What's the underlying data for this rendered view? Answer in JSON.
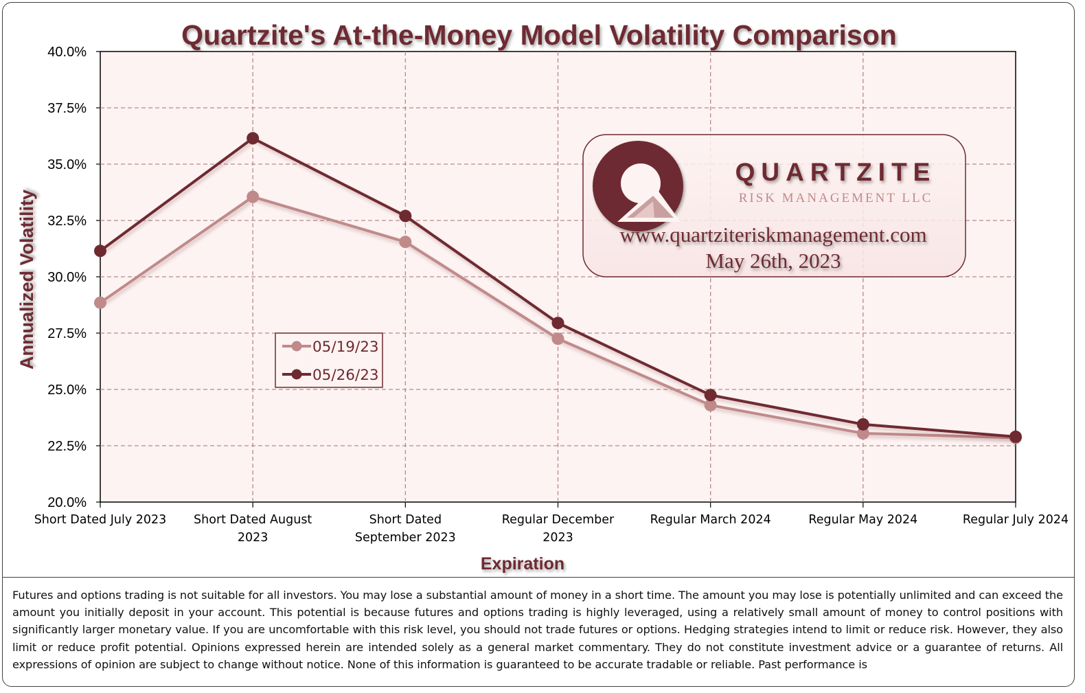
{
  "chart_data": {
    "type": "line",
    "title": "Quartzite's At-the-Money Model Volatility Comparison",
    "xlabel": "Expiration",
    "ylabel": "Annualized Volatility",
    "categories": [
      [
        "Short Dated July 2023"
      ],
      [
        "Short Dated August",
        "2023"
      ],
      [
        "Short Dated",
        "September 2023"
      ],
      [
        "Regular December",
        "2023"
      ],
      [
        "Regular March 2024"
      ],
      [
        "Regular May 2024"
      ],
      [
        "Regular July 2024"
      ]
    ],
    "ylim": [
      20.0,
      40.0
    ],
    "yticks": [
      "20.0%",
      "22.5%",
      "25.0%",
      "27.5%",
      "30.0%",
      "32.5%",
      "35.0%",
      "37.5%",
      "40.0%"
    ],
    "grid": true,
    "legend_position": "left-middle",
    "series": [
      {
        "name": "05/19/23",
        "color": "#c08a8a",
        "values": [
          28.85,
          33.55,
          31.55,
          27.25,
          24.3,
          23.05,
          22.85
        ]
      },
      {
        "name": "05/26/23",
        "color": "#6e2a30",
        "values": [
          31.15,
          36.15,
          32.7,
          27.95,
          24.75,
          23.45,
          22.9
        ]
      }
    ]
  },
  "logo": {
    "company": "QUARTZITE",
    "subtitle": "RISK MANAGEMENT LLC",
    "url": "www.quartziteriskmanagement.com",
    "date": "May 26th, 2023"
  },
  "disclaimer": "Futures and options trading is not suitable for all investors. You may lose a substantial amount of money in a short time. The amount you may lose is potentially unlimited and can exceed the amount you initially deposit in your account. This potential is because futures and options trading is highly leveraged, using a relatively small amount of money to control positions with significantly larger monetary value. If you are uncomfortable with this risk level, you should not trade futures or options. Hedging strategies intend to limit or reduce risk. However, they also limit or reduce profit potential. Opinions expressed herein are intended solely as a general market commentary. They do not constitute investment advice or a guarantee of returns. All expressions of opinion are subject to change without notice. None of this information is guaranteed to be accurate tradable or reliable. Past performance is",
  "colors": {
    "title": "#6e2a30",
    "plot_bg": "#fdf3f2",
    "grid": "#b58a8c",
    "series_1": "#c08a8a",
    "series_2": "#6e2a30",
    "logo_dark": "#6e2a30",
    "logo_light": "#c9a0a0"
  }
}
